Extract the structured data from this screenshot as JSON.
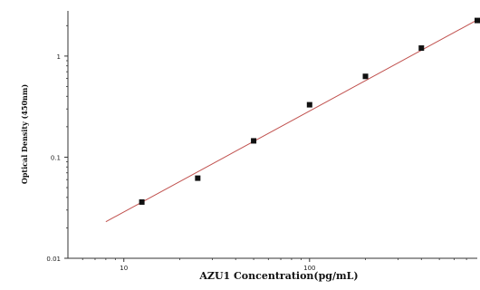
{
  "chart_data": {
    "type": "scatter",
    "title": "",
    "xlabel": "AZU1 Concentration(pg/mL)",
    "ylabel": "Optical Density (450nm)",
    "x_scale": "log",
    "y_scale": "log",
    "xlim": [
      5,
      800
    ],
    "ylim": [
      0.01,
      2.8
    ],
    "x_ticks": [
      10,
      100
    ],
    "x_tick_labels": [
      "10",
      "100"
    ],
    "y_ticks": [
      0.01,
      0.1,
      1
    ],
    "y_tick_labels": [
      "0.01",
      "0.1",
      "1"
    ],
    "grid": false,
    "legend": "none",
    "colors": {
      "points": "#111111",
      "fit_line": "#c0504d",
      "axis": "#333333"
    },
    "series": [
      {
        "kind": "points",
        "x": [
          12.5,
          25,
          50,
          100,
          200,
          400,
          800
        ],
        "y": [
          0.036,
          0.062,
          0.145,
          0.33,
          0.63,
          1.2,
          2.25
        ]
      },
      {
        "kind": "fit-line",
        "x": [
          8,
          800
        ],
        "y": [
          0.023,
          2.28
        ]
      }
    ]
  }
}
